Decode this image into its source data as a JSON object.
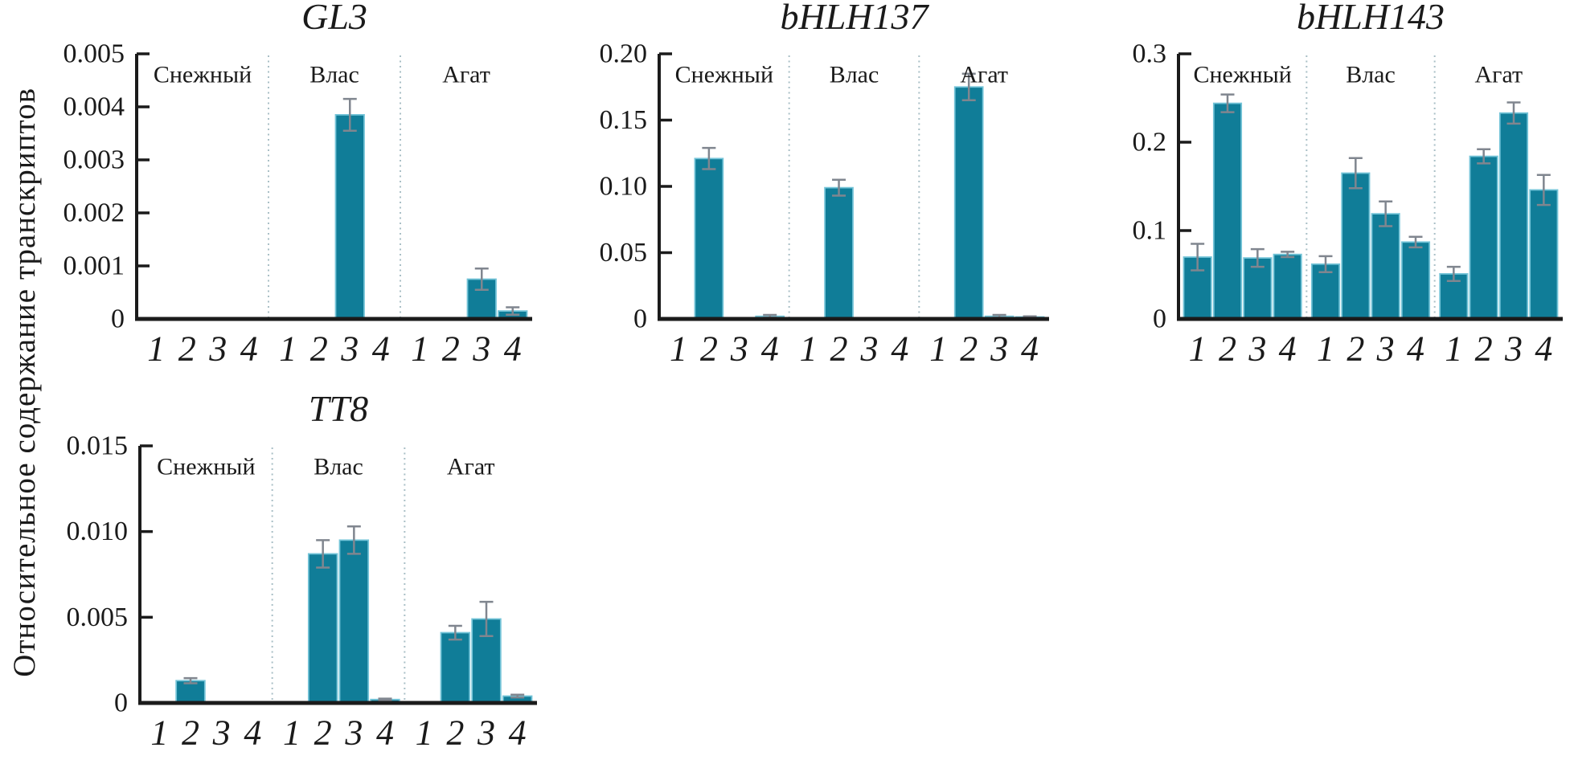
{
  "figure": {
    "y_axis_label": "Относительное содержание транскриптов",
    "colors": {
      "bar_fill": "#107d98",
      "bar_edge": "#74c4d8",
      "error_bar": "#80868f",
      "axis": "#1b1b1b",
      "separator": "#a9bfc6",
      "text": "#1a1a1a"
    }
  },
  "chart_data": [
    {
      "type": "bar",
      "title": "GL3",
      "ylabel": "",
      "xlabel": "",
      "ylim": [
        0,
        0.005
      ],
      "grid": false,
      "ytick_values": [
        0,
        0.001,
        0.002,
        0.003,
        0.004,
        0.005
      ],
      "ytick_labels": [
        "0",
        "0.001",
        "0.002",
        "0.003",
        "0.004",
        "0.005"
      ],
      "categories": [
        "1",
        "2",
        "3",
        "4"
      ],
      "groups": [
        {
          "label": "Снежный",
          "values": [
            0,
            0,
            0,
            0
          ],
          "errors": [
            0,
            0,
            0,
            0
          ]
        },
        {
          "label": "Влас",
          "values": [
            0,
            0,
            0.00385,
            0
          ],
          "errors": [
            0,
            0,
            0.0003,
            0
          ]
        },
        {
          "label": "Агат",
          "values": [
            0,
            0,
            0.00075,
            0.00015
          ],
          "errors": [
            0,
            0,
            0.0002,
            7e-05
          ]
        }
      ]
    },
    {
      "type": "bar",
      "title": "bHLH137",
      "ylabel": "",
      "xlabel": "",
      "ylim": [
        0,
        0.2
      ],
      "grid": false,
      "ytick_values": [
        0,
        0.05,
        0.1,
        0.15,
        0.2
      ],
      "ytick_labels": [
        "0",
        "0.05",
        "0.10",
        "0.15",
        "0.20"
      ],
      "categories": [
        "1",
        "2",
        "3",
        "4"
      ],
      "groups": [
        {
          "label": "Снежный",
          "values": [
            0,
            0.121,
            0,
            0.002
          ],
          "errors": [
            0,
            0.008,
            0,
            0.001
          ]
        },
        {
          "label": "Влас",
          "values": [
            0,
            0.099,
            0,
            0
          ],
          "errors": [
            0,
            0.006,
            0,
            0
          ]
        },
        {
          "label": "Агат",
          "values": [
            0,
            0.175,
            0.002,
            0.0015
          ],
          "errors": [
            0,
            0.01,
            0.001,
            0.0005
          ]
        }
      ]
    },
    {
      "type": "bar",
      "title": "bHLH143",
      "ylabel": "",
      "xlabel": "",
      "ylim": [
        0,
        0.3
      ],
      "grid": false,
      "ytick_values": [
        0,
        0.1,
        0.2,
        0.3
      ],
      "ytick_labels": [
        "0",
        "0.1",
        "0.2",
        "0.3"
      ],
      "categories": [
        "1",
        "2",
        "3",
        "4"
      ],
      "groups": [
        {
          "label": "Снежный",
          "values": [
            0.07,
            0.244,
            0.069,
            0.073
          ],
          "errors": [
            0.015,
            0.01,
            0.01,
            0.003
          ]
        },
        {
          "label": "Влас",
          "values": [
            0.062,
            0.165,
            0.119,
            0.087
          ],
          "errors": [
            0.009,
            0.017,
            0.014,
            0.006
          ]
        },
        {
          "label": "Агат",
          "values": [
            0.051,
            0.184,
            0.233,
            0.146
          ],
          "errors": [
            0.008,
            0.008,
            0.012,
            0.017
          ]
        }
      ]
    },
    {
      "type": "bar",
      "title": "TT8",
      "ylabel": "",
      "xlabel": "",
      "ylim": [
        0,
        0.015
      ],
      "grid": false,
      "ytick_values": [
        0,
        0.005,
        0.01,
        0.015
      ],
      "ytick_labels": [
        "0",
        "0.005",
        "0.010",
        "0.015"
      ],
      "categories": [
        "1",
        "2",
        "3",
        "4"
      ],
      "groups": [
        {
          "label": "Снежный",
          "values": [
            0,
            0.0013,
            0,
            0
          ],
          "errors": [
            0,
            0.00015,
            0,
            0
          ]
        },
        {
          "label": "Влас",
          "values": [
            0,
            0.0087,
            0.0095,
            0.0002
          ],
          "errors": [
            0,
            0.0008,
            0.0008,
            5e-05
          ]
        },
        {
          "label": "Агат",
          "values": [
            0,
            0.0041,
            0.0049,
            0.0004
          ],
          "errors": [
            0,
            0.0004,
            0.001,
            8e-05
          ]
        }
      ]
    }
  ]
}
